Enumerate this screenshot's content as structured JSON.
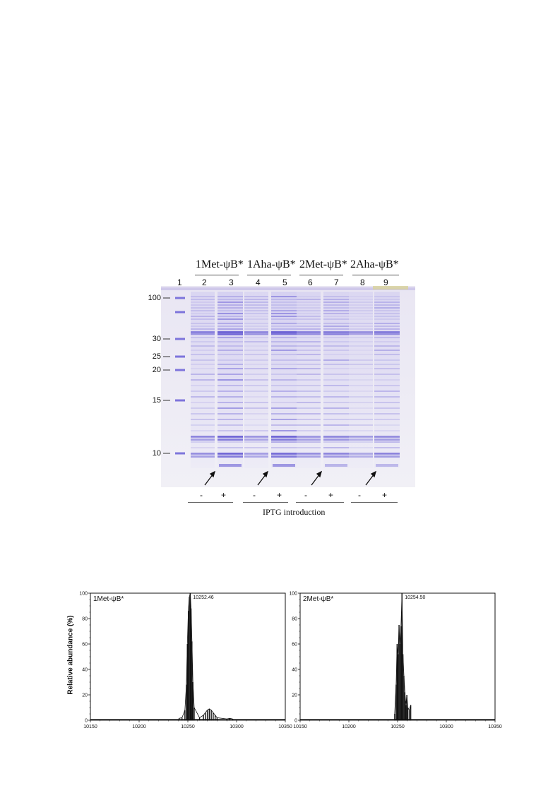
{
  "figure": {
    "gel": {
      "groups": [
        "1Met-ψB*",
        "1Aha-ψB*",
        "2Met-ψB*",
        "2Aha-ψB*"
      ],
      "lane_numbers": [
        "1",
        "2",
        "3",
        "4",
        "5",
        "6",
        "7",
        "8",
        "9"
      ],
      "markers": [
        "100",
        "30",
        "25",
        "20",
        "15",
        "10"
      ],
      "conditions": [
        "-",
        "+",
        "-",
        "+",
        "-",
        "+",
        "-",
        "+"
      ],
      "xlabel": "IPTG introduction"
    }
  },
  "chart_data": [
    {
      "type": "line",
      "title": "1Met-ψB*",
      "peak_label": "10252.46",
      "ylabel": "Relative abundance (%)",
      "xlabel": "",
      "xlim": [
        10150,
        10350
      ],
      "ylim": [
        0,
        100
      ],
      "x_ticks": [
        "10150",
        "10200",
        "10250",
        "10300",
        "10350"
      ],
      "y_ticks": [
        "0",
        "20",
        "40",
        "60",
        "80",
        "100"
      ],
      "peaks": [
        {
          "x": 10241,
          "y": 1.5
        },
        {
          "x": 10244,
          "y": 2
        },
        {
          "x": 10247,
          "y": 8
        },
        {
          "x": 10248.5,
          "y": 28
        },
        {
          "x": 10249.5,
          "y": 60
        },
        {
          "x": 10250.5,
          "y": 86
        },
        {
          "x": 10251.5,
          "y": 97
        },
        {
          "x": 10252.46,
          "y": 100
        },
        {
          "x": 10253.3,
          "y": 88
        },
        {
          "x": 10254.2,
          "y": 62
        },
        {
          "x": 10255.2,
          "y": 30
        },
        {
          "x": 10256.5,
          "y": 10
        },
        {
          "x": 10262,
          "y": 2
        },
        {
          "x": 10266,
          "y": 4
        },
        {
          "x": 10268,
          "y": 6
        },
        {
          "x": 10270,
          "y": 8
        },
        {
          "x": 10272,
          "y": 9
        },
        {
          "x": 10274,
          "y": 8
        },
        {
          "x": 10276,
          "y": 6
        },
        {
          "x": 10278,
          "y": 4
        },
        {
          "x": 10280,
          "y": 2
        },
        {
          "x": 10290,
          "y": 1
        },
        {
          "x": 10293,
          "y": 1.5
        },
        {
          "x": 10296,
          "y": 1
        }
      ]
    },
    {
      "type": "line",
      "title": "2Met-ψB*",
      "peak_label": "10254.50",
      "ylabel": "",
      "xlabel": "",
      "xlim": [
        10150,
        10350
      ],
      "ylim": [
        0,
        100
      ],
      "x_ticks": [
        "10150",
        "10200",
        "10250",
        "10300",
        "10350"
      ],
      "y_ticks": [
        "0",
        "20",
        "40",
        "60",
        "80",
        "100"
      ],
      "peaks": [
        {
          "x": 10247,
          "y": 5
        },
        {
          "x": 10248.5,
          "y": 28
        },
        {
          "x": 10249.5,
          "y": 60
        },
        {
          "x": 10250.5,
          "y": 52
        },
        {
          "x": 10251.5,
          "y": 75
        },
        {
          "x": 10252.5,
          "y": 60
        },
        {
          "x": 10253.5,
          "y": 74
        },
        {
          "x": 10254.5,
          "y": 100
        },
        {
          "x": 10255.5,
          "y": 52
        },
        {
          "x": 10256.5,
          "y": 35
        },
        {
          "x": 10257.5,
          "y": 22
        },
        {
          "x": 10258.5,
          "y": 12
        },
        {
          "x": 10259.5,
          "y": 20
        },
        {
          "x": 10260.5,
          "y": 10
        },
        {
          "x": 10262,
          "y": 8
        },
        {
          "x": 10263.5,
          "y": 12
        }
      ]
    }
  ]
}
